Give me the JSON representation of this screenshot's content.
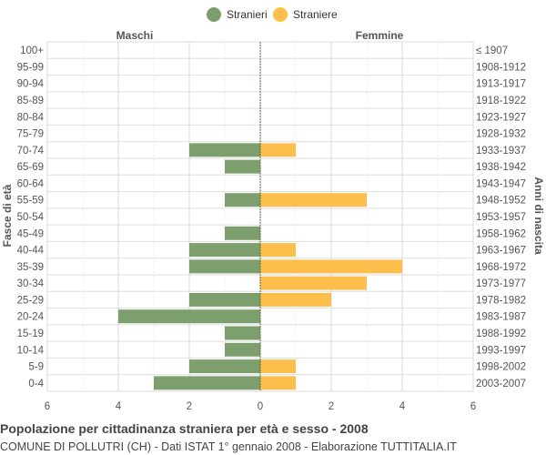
{
  "legend": {
    "stranieri_label": "Stranieri",
    "straniere_label": "Straniere"
  },
  "colors": {
    "male": "#7d9f6e",
    "female": "#fdbf4b",
    "grid": "#dddddd",
    "text": "#555555"
  },
  "chart_data": {
    "type": "bar",
    "orientation": "horizontal-butterfly",
    "left_header": "Maschi",
    "right_header": "Femmine",
    "ylabel_left": "Fasce di età",
    "ylabel_right": "Anni di nascita",
    "xlim": [
      -6,
      6
    ],
    "x_ticks": [
      "6",
      "4",
      "2",
      "0",
      "2",
      "4",
      "6"
    ],
    "categories": [
      "100+",
      "95-99",
      "90-94",
      "85-89",
      "80-84",
      "75-79",
      "70-74",
      "65-69",
      "60-64",
      "55-59",
      "50-54",
      "45-49",
      "40-44",
      "35-39",
      "30-34",
      "25-29",
      "20-24",
      "15-19",
      "10-14",
      "5-9",
      "0-4"
    ],
    "birth_years": [
      "≤ 1907",
      "1908-1912",
      "1913-1917",
      "1918-1922",
      "1923-1927",
      "1928-1932",
      "1933-1937",
      "1938-1942",
      "1943-1947",
      "1948-1952",
      "1953-1957",
      "1958-1962",
      "1963-1967",
      "1968-1972",
      "1973-1977",
      "1978-1982",
      "1983-1987",
      "1988-1992",
      "1993-1997",
      "1998-2002",
      "2003-2007"
    ],
    "series": [
      {
        "name": "Stranieri",
        "values": [
          0,
          0,
          0,
          0,
          0,
          0,
          2,
          1,
          0,
          1,
          0,
          1,
          2,
          2,
          0,
          2,
          4,
          1,
          1,
          2,
          3
        ]
      },
      {
        "name": "Straniere",
        "values": [
          0,
          0,
          0,
          0,
          0,
          0,
          1,
          0,
          0,
          3,
          0,
          0,
          1,
          4,
          3,
          2,
          0,
          0,
          0,
          1,
          1
        ]
      }
    ],
    "grid": true,
    "legend_position": "top-center"
  },
  "footer": {
    "title": "Popolazione per cittadinanza straniera per età e sesso - 2008",
    "subtitle": "COMUNE DI POLLUTRI (CH) - Dati ISTAT 1° gennaio 2008 - Elaborazione TUTTITALIA.IT"
  }
}
